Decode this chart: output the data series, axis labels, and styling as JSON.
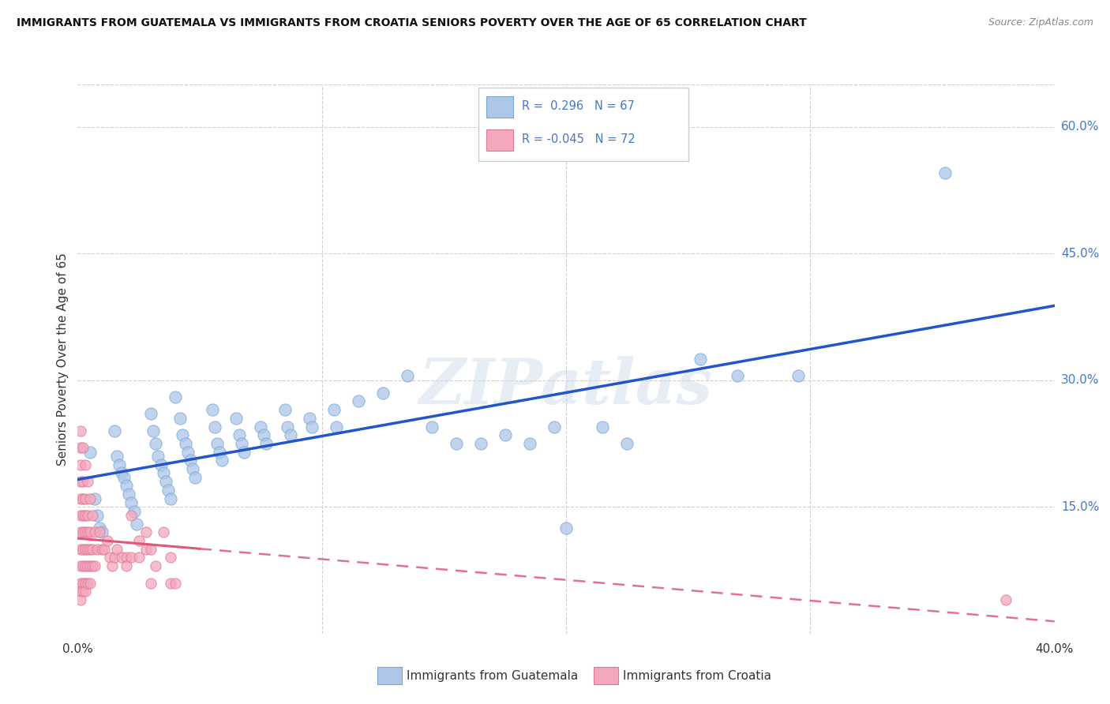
{
  "title": "IMMIGRANTS FROM GUATEMALA VS IMMIGRANTS FROM CROATIA SENIORS POVERTY OVER THE AGE OF 65 CORRELATION CHART",
  "source": "Source: ZipAtlas.com",
  "ylabel": "Seniors Poverty Over the Age of 65",
  "xlim": [
    0.0,
    0.4
  ],
  "ylim": [
    0.0,
    0.65
  ],
  "guatemala_color": "#aec6e8",
  "guatemala_edge": "#7aaad4",
  "croatia_color": "#f4a8bc",
  "croatia_edge": "#e07898",
  "trend_guatemala_color": "#2255cc",
  "trend_croatia_solid_color": "#e05878",
  "trend_croatia_dash_color": "#e05878",
  "legend_text_color": "#4477cc",
  "right_tick_color": "#4477cc",
  "grid_color": "#d0d0d0",
  "background_color": "#ffffff",
  "watermark": "ZIPatlas",
  "guatemala_scatter": [
    [
      0.005,
      0.215
    ],
    [
      0.007,
      0.16
    ],
    [
      0.008,
      0.14
    ],
    [
      0.009,
      0.125
    ],
    [
      0.01,
      0.12
    ],
    [
      0.015,
      0.24
    ],
    [
      0.016,
      0.21
    ],
    [
      0.017,
      0.2
    ],
    [
      0.018,
      0.19
    ],
    [
      0.019,
      0.185
    ],
    [
      0.02,
      0.175
    ],
    [
      0.021,
      0.165
    ],
    [
      0.022,
      0.155
    ],
    [
      0.023,
      0.145
    ],
    [
      0.024,
      0.13
    ],
    [
      0.03,
      0.26
    ],
    [
      0.031,
      0.24
    ],
    [
      0.032,
      0.225
    ],
    [
      0.033,
      0.21
    ],
    [
      0.034,
      0.2
    ],
    [
      0.035,
      0.19
    ],
    [
      0.036,
      0.18
    ],
    [
      0.037,
      0.17
    ],
    [
      0.038,
      0.16
    ],
    [
      0.04,
      0.28
    ],
    [
      0.042,
      0.255
    ],
    [
      0.043,
      0.235
    ],
    [
      0.044,
      0.225
    ],
    [
      0.045,
      0.215
    ],
    [
      0.046,
      0.205
    ],
    [
      0.047,
      0.195
    ],
    [
      0.048,
      0.185
    ],
    [
      0.055,
      0.265
    ],
    [
      0.056,
      0.245
    ],
    [
      0.057,
      0.225
    ],
    [
      0.058,
      0.215
    ],
    [
      0.059,
      0.205
    ],
    [
      0.065,
      0.255
    ],
    [
      0.066,
      0.235
    ],
    [
      0.067,
      0.225
    ],
    [
      0.068,
      0.215
    ],
    [
      0.075,
      0.245
    ],
    [
      0.076,
      0.235
    ],
    [
      0.077,
      0.225
    ],
    [
      0.085,
      0.265
    ],
    [
      0.086,
      0.245
    ],
    [
      0.087,
      0.235
    ],
    [
      0.095,
      0.255
    ],
    [
      0.096,
      0.245
    ],
    [
      0.105,
      0.265
    ],
    [
      0.106,
      0.245
    ],
    [
      0.115,
      0.275
    ],
    [
      0.125,
      0.285
    ],
    [
      0.135,
      0.305
    ],
    [
      0.145,
      0.245
    ],
    [
      0.155,
      0.225
    ],
    [
      0.165,
      0.225
    ],
    [
      0.175,
      0.235
    ],
    [
      0.185,
      0.225
    ],
    [
      0.195,
      0.245
    ],
    [
      0.2,
      0.125
    ],
    [
      0.215,
      0.245
    ],
    [
      0.225,
      0.225
    ],
    [
      0.255,
      0.325
    ],
    [
      0.27,
      0.305
    ],
    [
      0.295,
      0.305
    ],
    [
      0.355,
      0.545
    ]
  ],
  "croatia_scatter": [
    [
      0.001,
      0.24
    ],
    [
      0.001,
      0.22
    ],
    [
      0.001,
      0.2
    ],
    [
      0.001,
      0.18
    ],
    [
      0.001,
      0.16
    ],
    [
      0.001,
      0.14
    ],
    [
      0.001,
      0.12
    ],
    [
      0.001,
      0.1
    ],
    [
      0.001,
      0.08
    ],
    [
      0.001,
      0.06
    ],
    [
      0.001,
      0.05
    ],
    [
      0.001,
      0.04
    ],
    [
      0.002,
      0.22
    ],
    [
      0.002,
      0.18
    ],
    [
      0.002,
      0.16
    ],
    [
      0.002,
      0.14
    ],
    [
      0.002,
      0.12
    ],
    [
      0.002,
      0.1
    ],
    [
      0.002,
      0.08
    ],
    [
      0.002,
      0.06
    ],
    [
      0.002,
      0.05
    ],
    [
      0.003,
      0.2
    ],
    [
      0.003,
      0.16
    ],
    [
      0.003,
      0.14
    ],
    [
      0.003,
      0.12
    ],
    [
      0.003,
      0.1
    ],
    [
      0.003,
      0.08
    ],
    [
      0.003,
      0.06
    ],
    [
      0.003,
      0.05
    ],
    [
      0.004,
      0.18
    ],
    [
      0.004,
      0.14
    ],
    [
      0.004,
      0.12
    ],
    [
      0.004,
      0.1
    ],
    [
      0.004,
      0.08
    ],
    [
      0.004,
      0.06
    ],
    [
      0.005,
      0.16
    ],
    [
      0.005,
      0.12
    ],
    [
      0.005,
      0.1
    ],
    [
      0.005,
      0.08
    ],
    [
      0.005,
      0.06
    ],
    [
      0.006,
      0.14
    ],
    [
      0.006,
      0.1
    ],
    [
      0.006,
      0.08
    ],
    [
      0.007,
      0.12
    ],
    [
      0.007,
      0.08
    ],
    [
      0.008,
      0.1
    ],
    [
      0.009,
      0.12
    ],
    [
      0.01,
      0.1
    ],
    [
      0.011,
      0.1
    ],
    [
      0.012,
      0.11
    ],
    [
      0.013,
      0.09
    ],
    [
      0.014,
      0.08
    ],
    [
      0.015,
      0.09
    ],
    [
      0.016,
      0.1
    ],
    [
      0.018,
      0.09
    ],
    [
      0.02,
      0.09
    ],
    [
      0.02,
      0.08
    ],
    [
      0.022,
      0.09
    ],
    [
      0.022,
      0.14
    ],
    [
      0.025,
      0.11
    ],
    [
      0.025,
      0.09
    ],
    [
      0.028,
      0.12
    ],
    [
      0.028,
      0.1
    ],
    [
      0.03,
      0.1
    ],
    [
      0.03,
      0.06
    ],
    [
      0.032,
      0.08
    ],
    [
      0.035,
      0.12
    ],
    [
      0.038,
      0.06
    ],
    [
      0.038,
      0.09
    ],
    [
      0.04,
      0.06
    ],
    [
      0.38,
      0.04
    ]
  ]
}
